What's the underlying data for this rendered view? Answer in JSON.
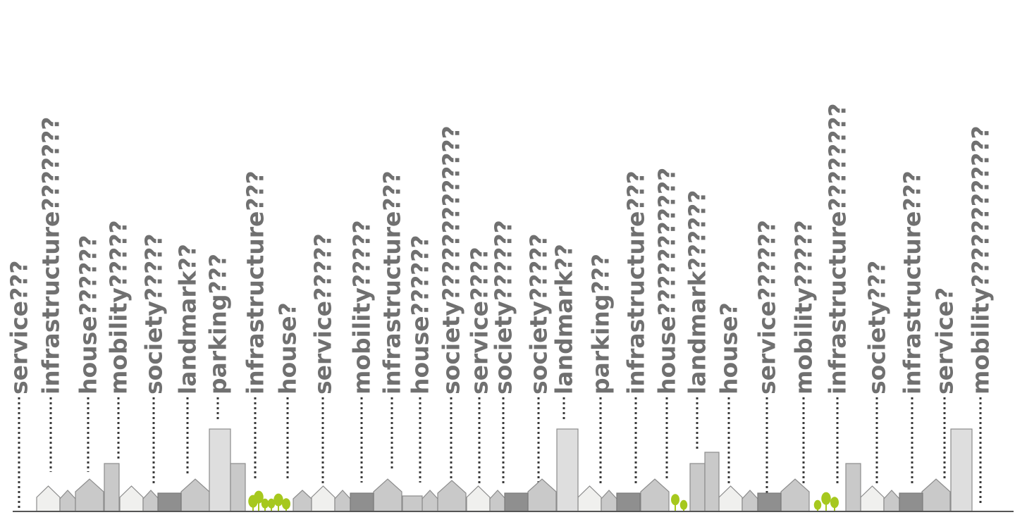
{
  "labels": [
    "service???",
    "infrastructure???????",
    "house??????",
    "mobility?????",
    "society?????",
    "landmark??",
    "parking???",
    "infrastructure???",
    "house?",
    "service?????",
    "mobility?????",
    "infrastructure???",
    "house??????",
    "society?????????????",
    "service????",
    "society??????",
    "society?????",
    "landmark??",
    "parking???",
    "infrastructure???",
    "house???????????",
    "landmark??????",
    "house?",
    "service??????",
    "mobility?????",
    "infrastructure????????",
    "society???",
    "infrastructure???",
    "service?",
    "mobility????????????"
  ],
  "colors": {
    "text": "#707070",
    "leader": "#3a3a3a",
    "building_light": "#f0f0ee",
    "building_mid": "#c9c9c9",
    "building_dark": "#8f8f8f",
    "tree": "#a6c81e"
  },
  "icons": [
    "house-icon",
    "tower-icon",
    "tree-icon"
  ]
}
